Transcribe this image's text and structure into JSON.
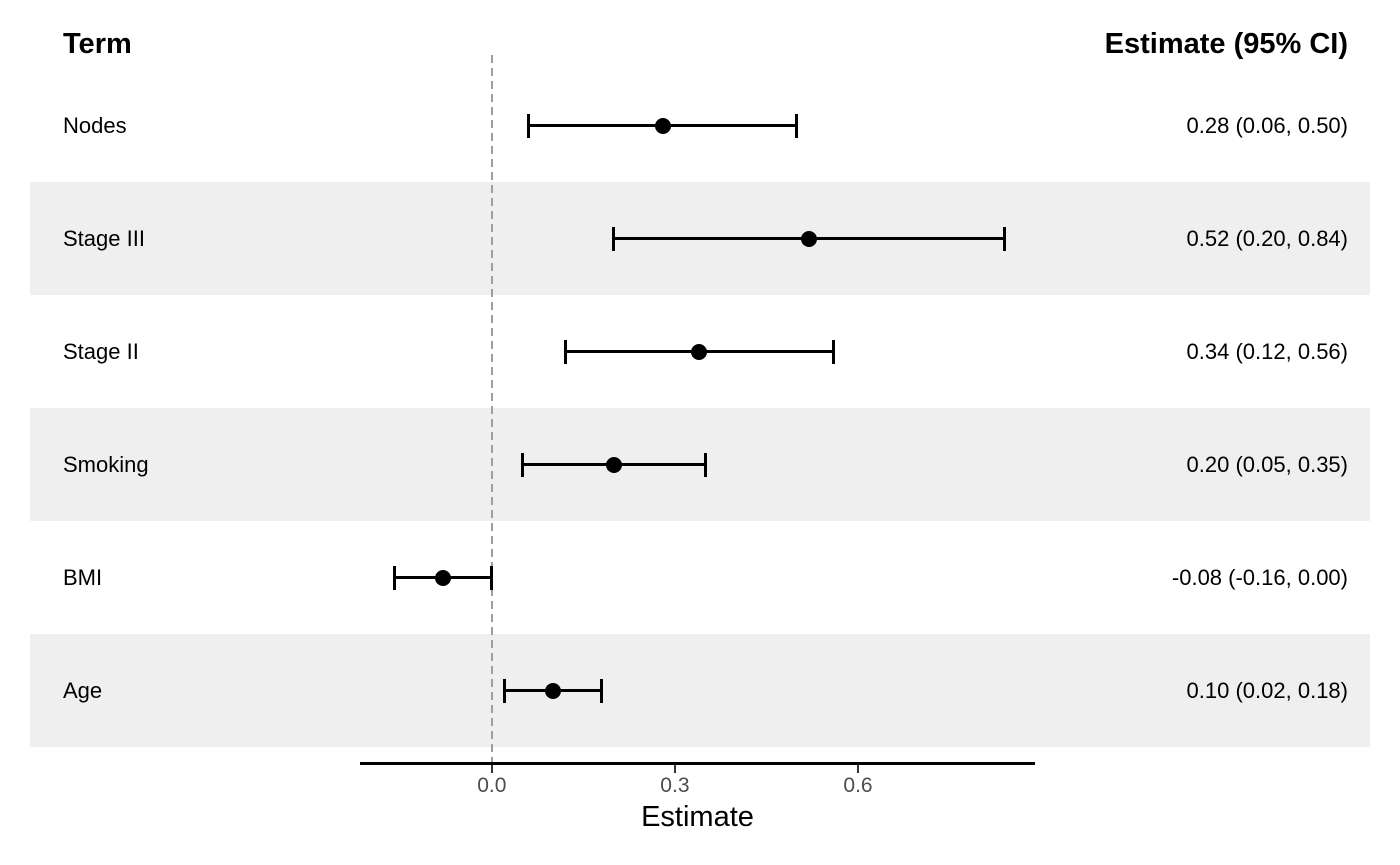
{
  "headers": {
    "term": "Term",
    "estimate": "Estimate (95% CI)"
  },
  "chart_data": {
    "type": "forest",
    "title": "",
    "xlabel": "Estimate",
    "xlim": [
      -0.216,
      0.89
    ],
    "x_ticks": [
      0.0,
      0.3,
      0.6
    ],
    "x_tick_labels": [
      "0.0",
      "0.3",
      "0.6"
    ],
    "reference_line_x": 0,
    "grid": false,
    "legend": "none",
    "rows": [
      {
        "term": "Nodes",
        "estimate": 0.28,
        "ci_low": 0.06,
        "ci_high": 0.5,
        "estimate_label": "0.28 (0.06, 0.50)"
      },
      {
        "term": "Stage III",
        "estimate": 0.52,
        "ci_low": 0.2,
        "ci_high": 0.84,
        "estimate_label": "0.52 (0.20, 0.84)"
      },
      {
        "term": "Stage II",
        "estimate": 0.34,
        "ci_low": 0.12,
        "ci_high": 0.56,
        "estimate_label": "0.34 (0.12, 0.56)"
      },
      {
        "term": "Smoking",
        "estimate": 0.2,
        "ci_low": 0.05,
        "ci_high": 0.35,
        "estimate_label": "0.20 (0.05, 0.35)"
      },
      {
        "term": "BMI",
        "estimate": -0.08,
        "ci_low": -0.16,
        "ci_high": 0.0,
        "estimate_label": "-0.08 (-0.16, 0.00)"
      },
      {
        "term": "Age",
        "estimate": 0.1,
        "ci_low": 0.02,
        "ci_high": 0.18,
        "estimate_label": "0.10 (0.02, 0.18)"
      }
    ]
  },
  "colors": {
    "background": "#FFFFFF",
    "stripe": "#EFEFEF",
    "reference_line": "#9E9E9E",
    "axis_line": "#000000",
    "tick_mark": "#333333",
    "tick_label": "#4D4D4D",
    "interval": "#000000",
    "point": "#000000",
    "text": "#000000"
  }
}
